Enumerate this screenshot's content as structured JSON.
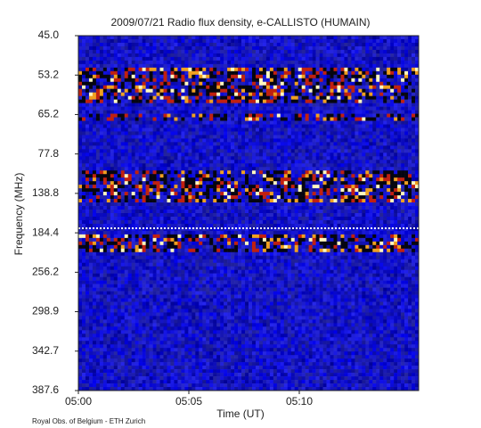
{
  "chart_data": {
    "type": "spectrogram",
    "title": "2009/07/21  Radio flux density, e-CALLISTO (HUMAIN)",
    "x_label": "Time (UT)",
    "y_label": "Frequency (MHz)",
    "footer": "Royal Obs. of Belgium - ETH Zurich",
    "xticks": [
      "05:00",
      "05:05",
      "05:10"
    ],
    "yticks": [
      "45.0",
      "53.2",
      "65.2",
      "77.8",
      "138.8",
      "184.4",
      "256.2",
      "298.9",
      "342.7",
      "387.6"
    ]
  }
}
